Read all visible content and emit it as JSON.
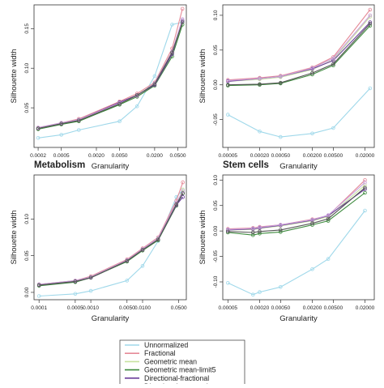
{
  "series_styles": [
    {
      "name": "Unnormalized",
      "color": "#9fd8ea"
    },
    {
      "name": "Fractional",
      "color": "#e58a98"
    },
    {
      "name": "Geometric mean",
      "color": "#c8e2a0"
    },
    {
      "name": "Geometric mean-limit5",
      "color": "#3d8a3d"
    },
    {
      "name": "Directional-fractional",
      "color": "#6a3d9a"
    },
    {
      "name": "Directional-geometric",
      "color": "#c9a0dc"
    },
    {
      "name": "",
      "color": "#555555"
    }
  ],
  "legend": {
    "placement": "bottom-center",
    "entries": [
      "Unnormalized",
      "Fractional",
      "Geometric mean",
      "Geometric mean-limit5",
      "Directional-fractional",
      "Directional-geometric"
    ]
  },
  "chart_data": [
    {
      "type": "line",
      "title": "",
      "xlabel": "Granularity",
      "ylabel": "Silhouette width",
      "x_scale": "log",
      "xlim": [
        0.00017,
        0.07
      ],
      "ylim": [
        0.0,
        0.18
      ],
      "x_ticks": [
        0.0002,
        0.0005,
        0.002,
        0.005,
        0.02,
        0.05
      ],
      "x_tick_labels": [
        "0.0002",
        "0.0005",
        "0.0020",
        "0.0050",
        "0.0200",
        "0.0500"
      ],
      "y_ticks": [
        0.05,
        0.1,
        0.15
      ],
      "y_tick_labels": [
        "0.05",
        "0.10",
        "0.15"
      ],
      "x": [
        0.0002,
        0.0005,
        0.001,
        0.005,
        0.01,
        0.02,
        0.04,
        0.06
      ],
      "series": [
        {
          "values": [
            0.012,
            0.016,
            0.022,
            0.033,
            0.052,
            0.09,
            0.155,
            0.158
          ]
        },
        {
          "values": [
            0.025,
            0.031,
            0.036,
            0.058,
            0.068,
            0.082,
            0.125,
            0.175
          ]
        },
        {
          "values": [
            0.024,
            0.03,
            0.034,
            0.055,
            0.065,
            0.08,
            0.12,
            0.16
          ]
        },
        {
          "values": [
            0.023,
            0.029,
            0.033,
            0.054,
            0.064,
            0.078,
            0.115,
            0.155
          ]
        },
        {
          "values": [
            0.024,
            0.03,
            0.035,
            0.057,
            0.066,
            0.079,
            0.118,
            0.16
          ]
        },
        {
          "values": [
            0.025,
            0.031,
            0.035,
            0.056,
            0.065,
            0.081,
            0.121,
            0.162
          ]
        },
        {
          "values": [
            0.024,
            0.03,
            0.034,
            0.055,
            0.066,
            0.08,
            0.12,
            0.158
          ]
        }
      ]
    },
    {
      "type": "line",
      "title": "",
      "xlabel": "Granularity",
      "ylabel": "Silhouette width",
      "x_scale": "log",
      "xlim": [
        4e-05,
        0.03
      ],
      "ylim": [
        -0.09,
        0.115
      ],
      "x_ticks": [
        5e-05,
        0.0002,
        0.0005,
        0.002,
        0.005,
        0.02
      ],
      "x_tick_labels": [
        "0.00005",
        "0.00020",
        "0.00050",
        "0.00200",
        "0.00500",
        "0.02000"
      ],
      "y_ticks": [
        -0.05,
        0.0,
        0.05,
        0.1
      ],
      "y_tick_labels": [
        "-0.05",
        "0.00",
        "0.05",
        "0.10"
      ],
      "x": [
        5e-05,
        0.0002,
        0.0005,
        0.002,
        0.005,
        0.025
      ],
      "series": [
        {
          "values": [
            -0.043,
            -0.067,
            -0.075,
            -0.07,
            -0.062,
            -0.005
          ]
        },
        {
          "values": [
            0.007,
            0.01,
            0.013,
            0.025,
            0.04,
            0.108
          ]
        },
        {
          "values": [
            0.005,
            0.008,
            0.011,
            0.022,
            0.036,
            0.098
          ]
        },
        {
          "values": [
            -0.001,
            0.0,
            0.002,
            0.015,
            0.028,
            0.085
          ]
        },
        {
          "values": [
            0.005,
            0.009,
            0.012,
            0.023,
            0.035,
            0.09
          ]
        },
        {
          "values": [
            0.006,
            0.009,
            0.012,
            0.024,
            0.038,
            0.1
          ]
        },
        {
          "values": [
            0.0,
            0.001,
            0.003,
            0.017,
            0.03,
            0.088
          ]
        }
      ]
    },
    {
      "type": "line",
      "title": "Metabolism",
      "xlabel": "Granularity",
      "ylabel": "Silhouette width",
      "x_scale": "log",
      "xlim": [
        8e-05,
        0.07
      ],
      "ylim": [
        -0.01,
        0.16
      ],
      "x_ticks": [
        0.0001,
        0.0005,
        0.001,
        0.005,
        0.01,
        0.05
      ],
      "x_tick_labels": [
        "0.0001",
        "0.0005",
        "0.0010",
        "0.0050",
        "0.0100",
        "0.0500"
      ],
      "y_ticks": [
        0.0,
        0.05,
        0.1
      ],
      "y_tick_labels": [
        "0.00",
        "0.05",
        "0.10"
      ],
      "x": [
        0.0001,
        0.0005,
        0.001,
        0.005,
        0.01,
        0.02,
        0.045,
        0.06
      ],
      "series": [
        {
          "values": [
            -0.005,
            -0.002,
            0.002,
            0.016,
            0.036,
            0.07,
            0.13,
            0.14
          ]
        },
        {
          "values": [
            0.011,
            0.016,
            0.022,
            0.045,
            0.06,
            0.075,
            0.125,
            0.15
          ]
        },
        {
          "values": [
            0.01,
            0.015,
            0.021,
            0.043,
            0.058,
            0.073,
            0.12,
            0.14
          ]
        },
        {
          "values": [
            0.009,
            0.014,
            0.02,
            0.042,
            0.057,
            0.071,
            0.118,
            0.135
          ]
        },
        {
          "values": [
            0.01,
            0.015,
            0.02,
            0.043,
            0.058,
            0.072,
            0.119,
            0.13
          ]
        },
        {
          "values": [
            0.011,
            0.016,
            0.021,
            0.044,
            0.059,
            0.074,
            0.122,
            0.138
          ]
        },
        {
          "values": [
            0.01,
            0.015,
            0.02,
            0.043,
            0.058,
            0.072,
            0.12,
            0.135
          ]
        }
      ]
    },
    {
      "type": "line",
      "title": "Stem cells",
      "xlabel": "Granularity",
      "ylabel": "Silhouette width",
      "x_scale": "log",
      "xlim": [
        4e-05,
        0.03
      ],
      "ylim": [
        -0.135,
        0.11
      ],
      "x_ticks": [
        5e-05,
        0.0002,
        0.0005,
        0.002,
        0.005,
        0.02
      ],
      "x_tick_labels": [
        "0.00005",
        "0.00020",
        "0.00050",
        "0.00200",
        "0.00500",
        "0.02000"
      ],
      "y_ticks": [
        -0.1,
        -0.05,
        0.0,
        0.05,
        0.1
      ],
      "y_tick_labels": [
        "-0.10",
        "-0.05",
        "0.00",
        "0.05",
        "0.10"
      ],
      "x": [
        5e-05,
        0.00015,
        0.0002,
        0.0005,
        0.002,
        0.004,
        0.02
      ],
      "series": [
        {
          "values": [
            -0.102,
            -0.125,
            -0.12,
            -0.11,
            -0.075,
            -0.055,
            0.04
          ]
        },
        {
          "values": [
            0.004,
            0.006,
            0.008,
            0.012,
            0.023,
            0.03,
            0.1
          ]
        },
        {
          "values": [
            0.002,
            0.003,
            0.005,
            0.01,
            0.02,
            0.028,
            0.09
          ]
        },
        {
          "values": [
            -0.003,
            -0.008,
            -0.005,
            -0.002,
            0.012,
            0.02,
            0.075
          ]
        },
        {
          "values": [
            0.002,
            0.004,
            0.006,
            0.011,
            0.021,
            0.03,
            0.082
          ]
        },
        {
          "values": [
            0.003,
            0.005,
            0.007,
            0.012,
            0.022,
            0.031,
            0.095
          ]
        },
        {
          "values": [
            -0.001,
            -0.003,
            -0.001,
            0.002,
            0.015,
            0.024,
            0.085
          ]
        }
      ]
    }
  ]
}
